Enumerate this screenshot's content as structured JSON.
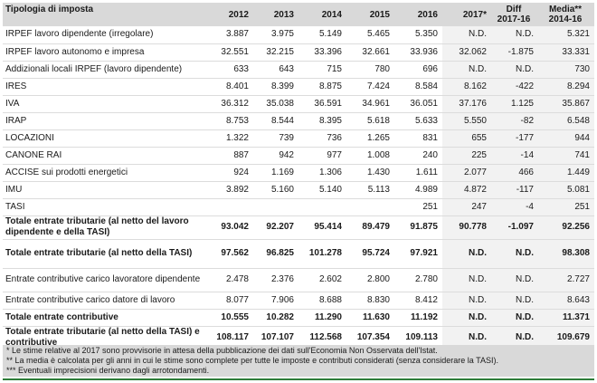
{
  "table": {
    "headers": [
      "Tipologia di imposta",
      "2012",
      "2013",
      "2014",
      "2015",
      "2016",
      "2017*",
      "Diff\n2017-16",
      "Media**\n2014-16"
    ],
    "rows": [
      {
        "label": "IRPEF lavoro dipendente (irregolare)",
        "values": [
          "3.887",
          "3.975",
          "5.149",
          "5.465",
          "5.350",
          "N.D.",
          "N.D.",
          "5.321"
        ],
        "type": "normal"
      },
      {
        "label": "IRPEF lavoro autonomo e impresa",
        "values": [
          "32.551",
          "32.215",
          "33.396",
          "32.661",
          "33.936",
          "32.062",
          "-1.875",
          "33.331"
        ],
        "type": "normal"
      },
      {
        "label": "Addizionali locali IRPEF (lavoro dipendente)",
        "values": [
          "633",
          "643",
          "715",
          "780",
          "696",
          "N.D.",
          "N.D.",
          "730"
        ],
        "type": "normal"
      },
      {
        "label": "IRES",
        "values": [
          "8.401",
          "8.399",
          "8.875",
          "7.424",
          "8.584",
          "8.162",
          "-422",
          "8.294"
        ],
        "type": "normal"
      },
      {
        "label": "IVA",
        "values": [
          "36.312",
          "35.038",
          "36.591",
          "34.961",
          "36.051",
          "37.176",
          "1.125",
          "35.867"
        ],
        "type": "normal"
      },
      {
        "label": "IRAP",
        "values": [
          "8.753",
          "8.544",
          "8.395",
          "5.618",
          "5.633",
          "5.550",
          "-82",
          "6.548"
        ],
        "type": "normal"
      },
      {
        "label": "LOCAZIONI",
        "values": [
          "1.322",
          "739",
          "736",
          "1.265",
          "831",
          "655",
          "-177",
          "944"
        ],
        "type": "normal"
      },
      {
        "label": "CANONE RAI",
        "values": [
          "887",
          "942",
          "977",
          "1.008",
          "240",
          "225",
          "-14",
          "741"
        ],
        "type": "normal"
      },
      {
        "label": "ACCISE sui prodotti energetici",
        "values": [
          "924",
          "1.169",
          "1.306",
          "1.430",
          "1.611",
          "2.077",
          "466",
          "1.449"
        ],
        "type": "normal"
      },
      {
        "label": "IMU",
        "values": [
          "3.892",
          "5.160",
          "5.140",
          "5.113",
          "4.989",
          "4.872",
          "-117",
          "5.081"
        ],
        "type": "normal"
      },
      {
        "label": "TASI",
        "values": [
          "",
          "",
          "",
          "",
          "251",
          "247",
          "-4",
          "251"
        ],
        "type": "normal"
      },
      {
        "label": "Totale entrate tributarie (al netto del lavoro dipendente e della TASI)",
        "values": [
          "93.042",
          "92.207",
          "95.414",
          "89.479",
          "91.875",
          "90.778",
          "-1.097",
          "92.256"
        ],
        "type": "total"
      },
      {
        "label": "Totale entrate tributarie (al netto della TASI)",
        "values": [
          "97.562",
          "96.825",
          "101.278",
          "95.724",
          "97.921",
          "N.D.",
          "N.D.",
          "98.308"
        ],
        "type": "total2"
      },
      {
        "label": "Entrate contributive carico lavoratore dipendente",
        "values": [
          "2.478",
          "2.376",
          "2.602",
          "2.800",
          "2.780",
          "N.D.",
          "N.D.",
          "2.727"
        ],
        "type": "normal2"
      },
      {
        "label": "Entrate contributive carico datore di lavoro",
        "values": [
          "8.077",
          "7.906",
          "8.688",
          "8.830",
          "8.412",
          "N.D.",
          "N.D.",
          "8.643"
        ],
        "type": "normal"
      },
      {
        "label": "Totale entrate contributive",
        "values": [
          "10.555",
          "10.282",
          "11.290",
          "11.630",
          "11.192",
          "N.D.",
          "N.D.",
          "11.371"
        ],
        "type": "total"
      },
      {
        "label": "Totale entrate tributarie (al netto della TASI) e contributive",
        "values": [
          "108.117",
          "107.107",
          "112.568",
          "107.354",
          "109.113",
          "N.D.",
          "N.D.",
          "109.679"
        ],
        "type": "total"
      }
    ]
  },
  "notes": [
    "* Le stime relative al 2017 sono provvisorie in attesa della pubblicazione dei dati sull'Economia Non Osservata dell'Istat.",
    "** La media è calcolata per gli anni in cui le stime sono complete per tutte le imposte e contributi considerati (senza considerare la TASI).",
    "*** Eventuali imprecisioni derivano dagli arrotondamenti."
  ],
  "colors": {
    "header_bg": "#d9d9d9",
    "accent_rule": "#2e7d3a"
  }
}
